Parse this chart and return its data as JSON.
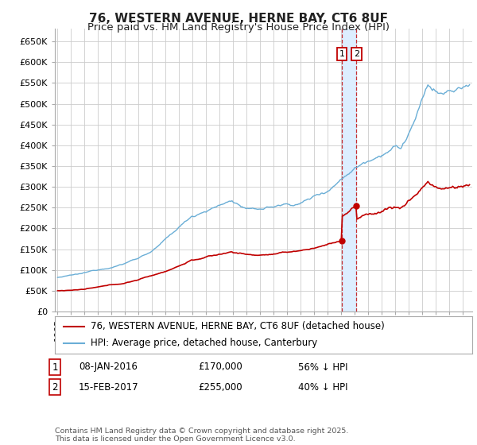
{
  "title": "76, WESTERN AVENUE, HERNE BAY, CT6 8UF",
  "subtitle": "Price paid vs. HM Land Registry's House Price Index (HPI)",
  "ylabel_ticks": [
    "£0",
    "£50K",
    "£100K",
    "£150K",
    "£200K",
    "£250K",
    "£300K",
    "£350K",
    "£400K",
    "£450K",
    "£500K",
    "£550K",
    "£600K",
    "£650K"
  ],
  "ytick_values": [
    0,
    50000,
    100000,
    150000,
    200000,
    250000,
    300000,
    350000,
    400000,
    450000,
    500000,
    550000,
    600000,
    650000
  ],
  "ylim": [
    0,
    680000
  ],
  "xlim_start": 1994.8,
  "xlim_end": 2025.7,
  "hpi_color": "#6aaed6",
  "price_color": "#c00000",
  "shade_color": "#ddeeff",
  "sale1_date": 2016.04,
  "sale1_price": 170000,
  "sale2_date": 2017.12,
  "sale2_price": 255000,
  "legend_line1": "76, WESTERN AVENUE, HERNE BAY, CT6 8UF (detached house)",
  "legend_line2": "HPI: Average price, detached house, Canterbury",
  "footnote": "Contains HM Land Registry data © Crown copyright and database right 2025.\nThis data is licensed under the Open Government Licence v3.0.",
  "bg_color": "#ffffff",
  "grid_color": "#cccccc",
  "title_fontsize": 11,
  "subtitle_fontsize": 9.5,
  "tick_fontsize": 8,
  "legend_fontsize": 8.5,
  "annotation_fontsize": 8.5
}
